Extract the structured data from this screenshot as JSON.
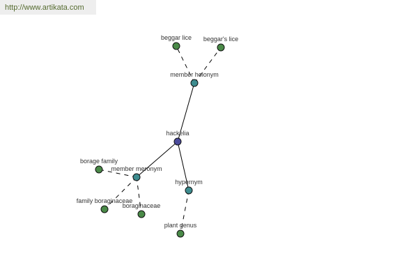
{
  "watermark": "http://www.artikata.com",
  "colors": {
    "root": "#4b4b9b",
    "relation": "#3d8c8f",
    "leaf": "#4a8a48",
    "edge": "#000000"
  },
  "nodes": [
    {
      "id": "hackelia",
      "label": "hackelia",
      "kind": "root"
    },
    {
      "id": "holonym",
      "label": "member holonym",
      "kind": "relation"
    },
    {
      "id": "beggar_lice",
      "label": "beggar lice",
      "kind": "leaf"
    },
    {
      "id": "beggars_lice",
      "label": "beggar's lice",
      "kind": "leaf"
    },
    {
      "id": "meronym",
      "label": "member meronym",
      "kind": "relation"
    },
    {
      "id": "borage_family",
      "label": "borage family",
      "kind": "leaf"
    },
    {
      "id": "family_boraginaceae",
      "label": "family boraginaceae",
      "kind": "leaf"
    },
    {
      "id": "boraginaceae",
      "label": "boraginaceae",
      "kind": "leaf"
    },
    {
      "id": "hypernym",
      "label": "hypernym",
      "kind": "relation"
    },
    {
      "id": "plant_genus",
      "label": "plant genus",
      "kind": "leaf"
    }
  ],
  "edges": [
    {
      "from": "hackelia",
      "to": "holonym",
      "style": "solid"
    },
    {
      "from": "hackelia",
      "to": "meronym",
      "style": "solid"
    },
    {
      "from": "hackelia",
      "to": "hypernym",
      "style": "solid"
    },
    {
      "from": "holonym",
      "to": "beggar_lice",
      "style": "dashed"
    },
    {
      "from": "holonym",
      "to": "beggars_lice",
      "style": "dashed"
    },
    {
      "from": "meronym",
      "to": "borage_family",
      "style": "dashed"
    },
    {
      "from": "meronym",
      "to": "family_boraginaceae",
      "style": "dashed"
    },
    {
      "from": "meronym",
      "to": "boraginaceae",
      "style": "dashed"
    },
    {
      "from": "hypernym",
      "to": "plant_genus",
      "style": "dashed"
    }
  ]
}
